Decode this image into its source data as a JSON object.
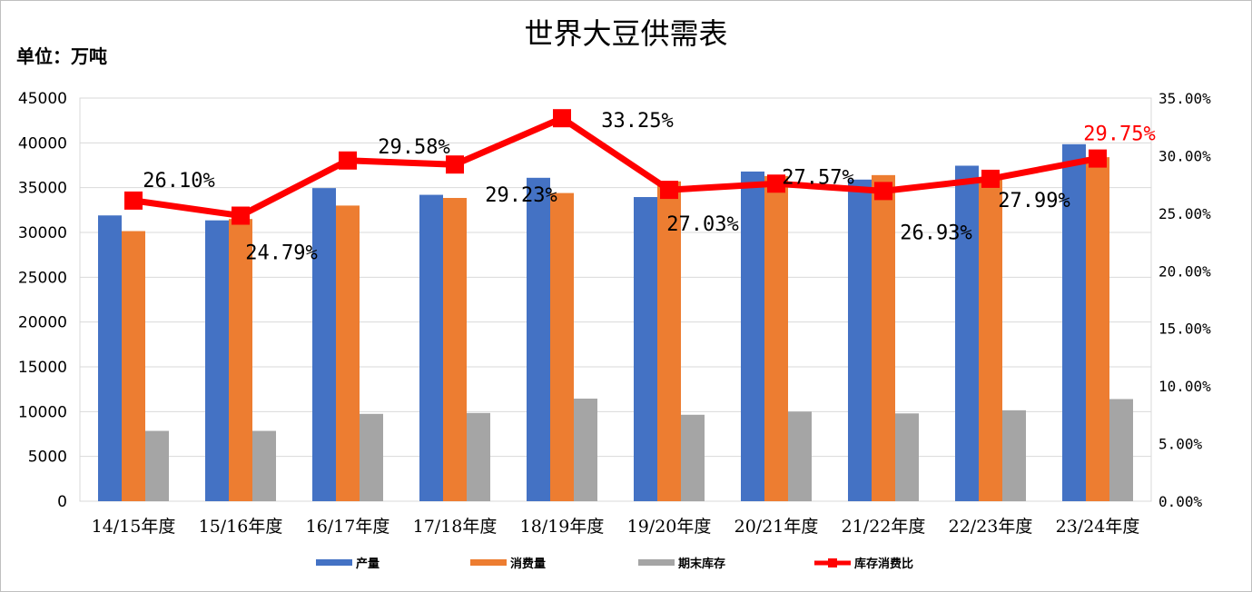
{
  "title": "世界大豆供需表",
  "unit_label": "单位：万吨",
  "chart_data": {
    "type": "bar",
    "title": "世界大豆供需表",
    "categories": [
      "14/15年度",
      "15/16年度",
      "16/17年度",
      "17/18年度",
      "18/19年度",
      "19/20年度",
      "20/21年度",
      "21/22年度",
      "22/23年度",
      "23/24年度"
    ],
    "series": [
      {
        "name": "产量",
        "type": "bar",
        "axis": "left",
        "color": "#4472c4",
        "values": [
          31900,
          31350,
          34950,
          34200,
          36100,
          33950,
          36800,
          35900,
          37450,
          39850
        ]
      },
      {
        "name": "消费量",
        "type": "bar",
        "axis": "left",
        "color": "#ed7d31",
        "values": [
          30150,
          31500,
          33000,
          33850,
          34400,
          35700,
          36300,
          36400,
          35900,
          38400
        ]
      },
      {
        "name": "期末库存",
        "type": "bar",
        "axis": "left",
        "color": "#a5a5a5",
        "values": [
          7850,
          7850,
          9750,
          9850,
          11450,
          9650,
          10000,
          9800,
          10150,
          11400
        ]
      },
      {
        "name": "库存消费比",
        "type": "line",
        "axis": "right",
        "color": "#ff0000",
        "values": [
          26.1,
          24.79,
          29.58,
          29.23,
          33.25,
          27.03,
          27.57,
          26.93,
          27.99,
          29.75
        ],
        "labels": [
          "26.10%",
          "24.79%",
          "29.58%",
          "29.23%",
          "33.25%",
          "27.03%",
          "27.57%",
          "26.93%",
          "27.99%",
          "29.75%"
        ]
      }
    ],
    "ylim": [
      0,
      45000
    ],
    "yticks": [
      "0",
      "5000",
      "10000",
      "15000",
      "20000",
      "25000",
      "30000",
      "35000",
      "40000",
      "45000"
    ],
    "y2lim": [
      0,
      35
    ],
    "y2ticks": [
      "0.00%",
      "5.00%",
      "10.00%",
      "15.00%",
      "20.00%",
      "25.00%",
      "30.00%",
      "35.00%"
    ],
    "grid": true,
    "legend_position": "bottom"
  }
}
